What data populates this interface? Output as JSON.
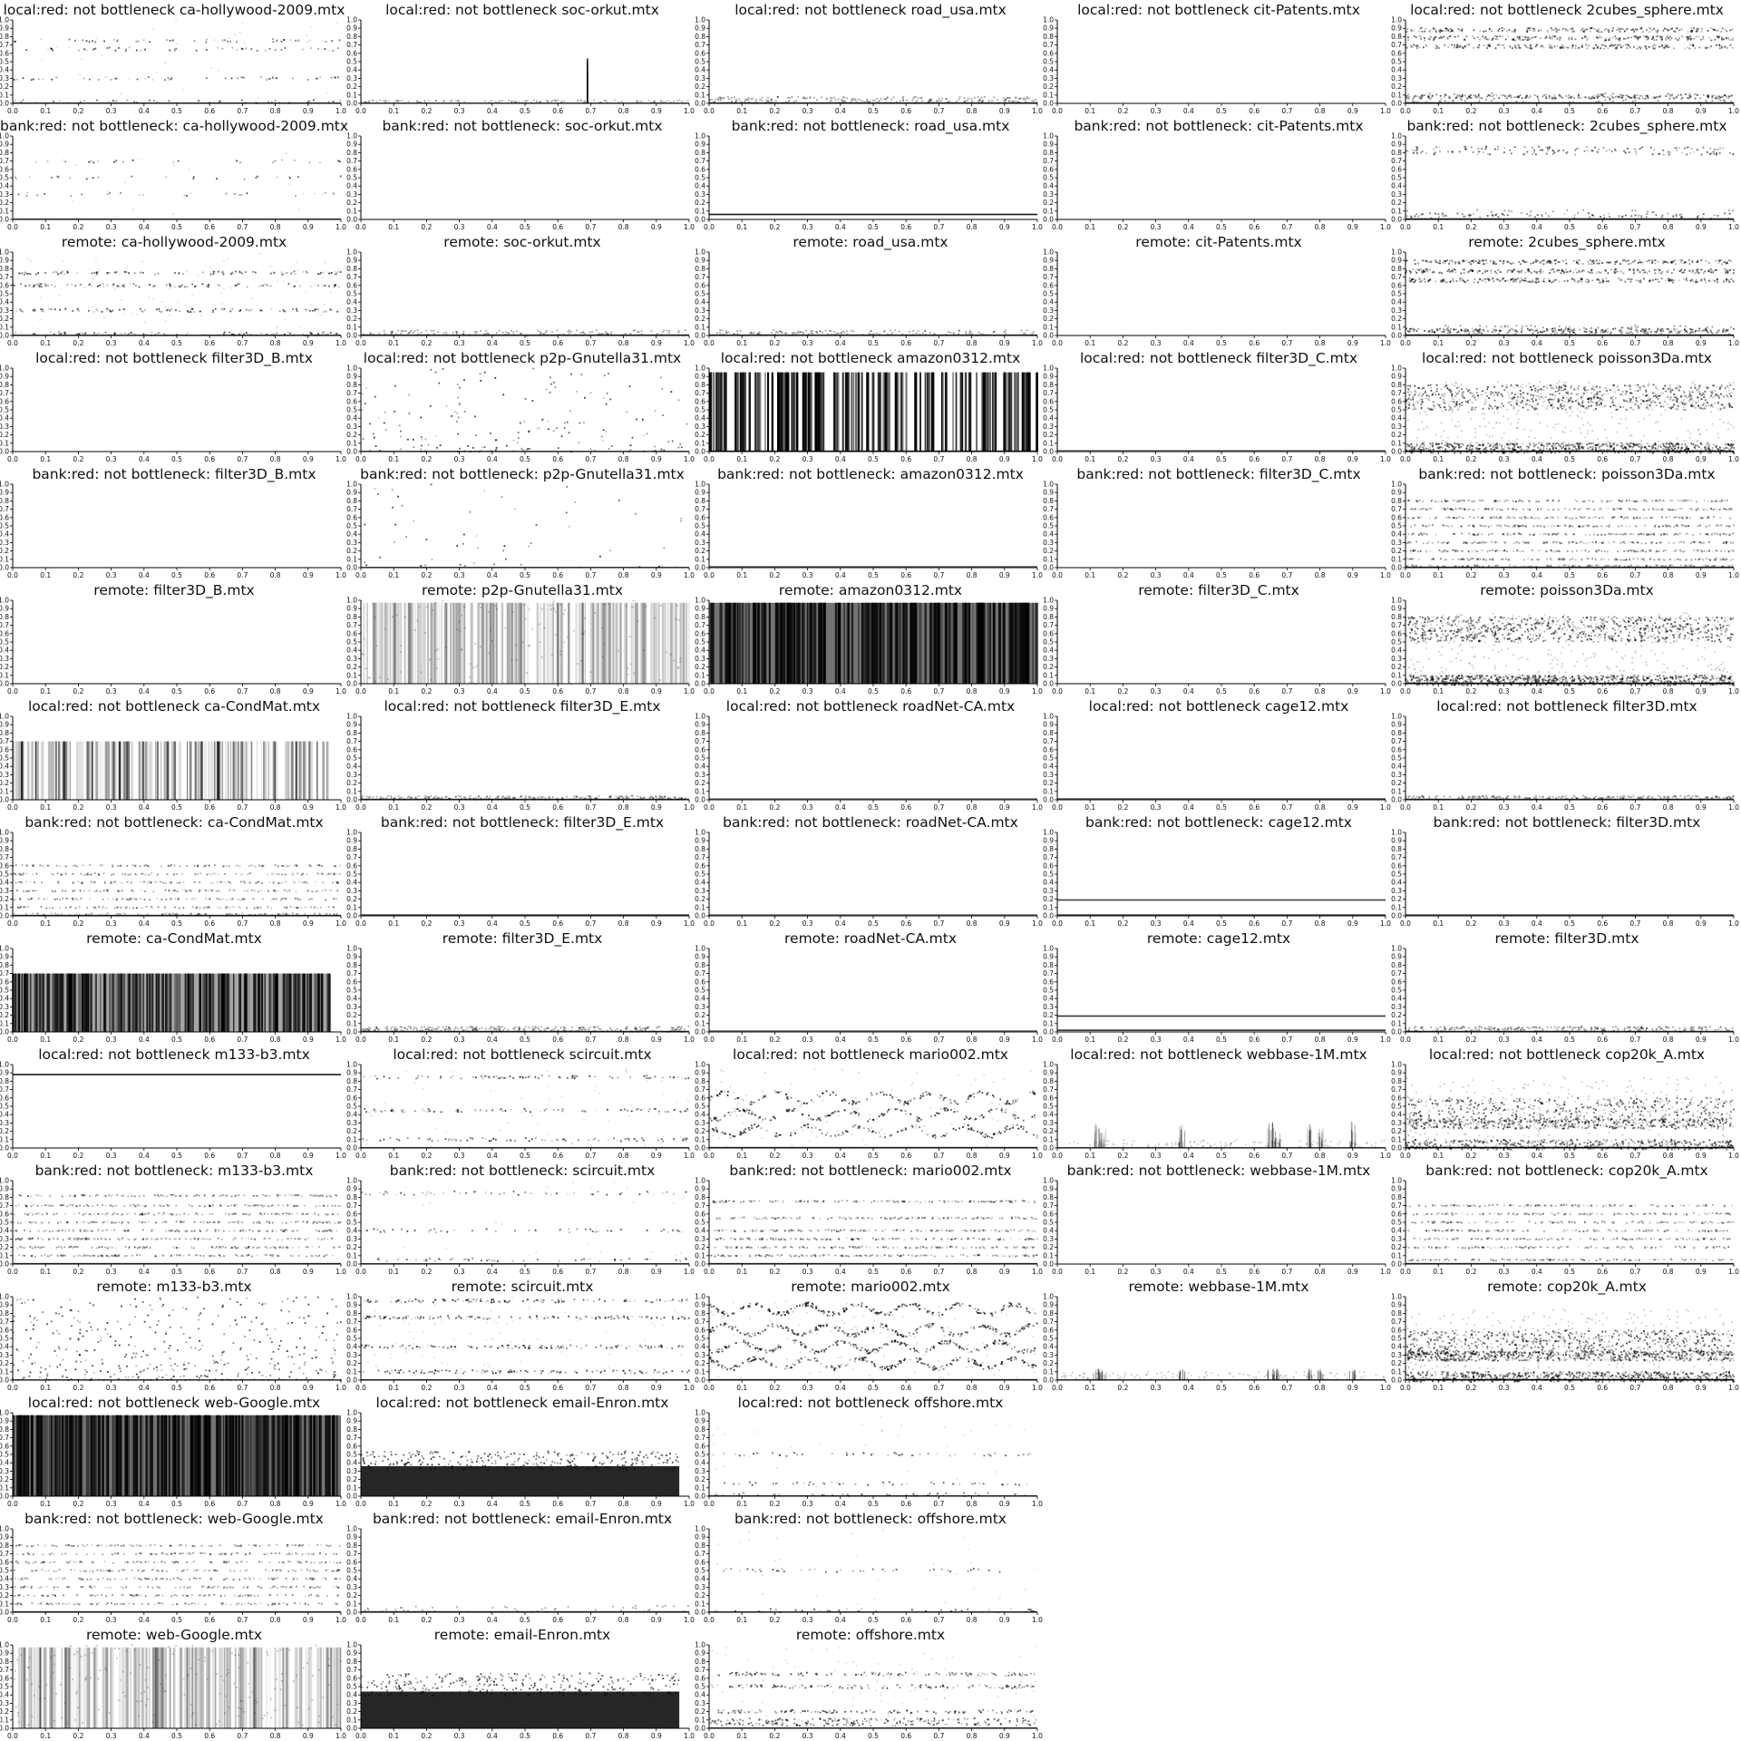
{
  "layout": {
    "columns": 5
  },
  "chart_data": {
    "type": "scatter",
    "xlim": [
      0,
      1
    ],
    "ylim": [
      0,
      1
    ],
    "x_ticks": [
      "0.0",
      "0.1",
      "0.2",
      "0.3",
      "0.4",
      "0.5",
      "0.6",
      "0.7",
      "0.8",
      "0.9",
      "1.0"
    ],
    "y_ticks": [
      "0.0",
      "0.1",
      "0.2",
      "0.3",
      "0.4",
      "0.5",
      "0.6",
      "0.7",
      "0.8",
      "0.9",
      "1.0"
    ],
    "marker_color": "#000000",
    "panels": [
      {
        "title": "local:red: not bottleneck ca-hollywood-2009.mtx",
        "pattern": "sparse-bands",
        "bands": [
          0.75,
          0.65,
          0.3,
          0.02
        ],
        "density": 0.12
      },
      {
        "title": "local:red: not bottleneck soc-orkut.mtx",
        "pattern": "spike",
        "bands": [
          0.02
        ],
        "spike_x": 0.69,
        "density": 0.05
      },
      {
        "title": "local:red: not bottleneck road_usa.mtx",
        "pattern": "bottom-band",
        "bands": [
          0.05
        ],
        "density": 0.5
      },
      {
        "title": "local:red: not bottleneck cit-Patents.mtx",
        "pattern": "empty",
        "bands": [],
        "density": 0
      },
      {
        "title": "local:red: not bottleneck 2cubes_sphere.mtx",
        "pattern": "top-bottom",
        "bands": [
          0.88,
          0.78,
          0.68,
          0.08
        ],
        "density": 0.4
      },
      {
        "title": "bank:red: not bottleneck: ca-hollywood-2009.mtx",
        "pattern": "sparse-bands",
        "bands": [
          0.7,
          0.5,
          0.3
        ],
        "density": 0.06
      },
      {
        "title": "bank:red: not bottleneck: soc-orkut.mtx",
        "pattern": "empty",
        "bands": [],
        "density": 0
      },
      {
        "title": "bank:red: not bottleneck: road_usa.mtx",
        "pattern": "line",
        "bands": [
          0.06
        ],
        "density": 1
      },
      {
        "title": "bank:red: not bottleneck: cit-Patents.mtx",
        "pattern": "empty",
        "bands": [],
        "density": 0
      },
      {
        "title": "bank:red: not bottleneck: 2cubes_sphere.mtx",
        "pattern": "top-bottom",
        "bands": [
          0.85,
          0.8,
          0.05
        ],
        "density": 0.15
      },
      {
        "title": "remote: ca-hollywood-2009.mtx",
        "pattern": "sparse-bands",
        "bands": [
          0.75,
          0.6,
          0.3,
          0.02
        ],
        "density": 0.25
      },
      {
        "title": "remote: soc-orkut.mtx",
        "pattern": "bottom-band",
        "bands": [
          0.04
        ],
        "density": 0.3
      },
      {
        "title": "remote: road_usa.mtx",
        "pattern": "bottom-band",
        "bands": [
          0.04
        ],
        "density": 0.3
      },
      {
        "title": "remote: cit-Patents.mtx",
        "pattern": "empty",
        "bands": [],
        "density": 0
      },
      {
        "title": "remote: 2cubes_sphere.mtx",
        "pattern": "top-bottom",
        "bands": [
          0.88,
          0.77,
          0.66,
          0.06
        ],
        "density": 0.45
      },
      {
        "title": "local:red: not bottleneck filter3D_B.mtx",
        "pattern": "empty",
        "bands": [],
        "density": 0
      },
      {
        "title": "local:red: not bottleneck p2p-Gnutella31.mtx",
        "pattern": "scatter",
        "bands": [],
        "density": 0.25
      },
      {
        "title": "local:red: not bottleneck amazon0312.mtx",
        "pattern": "columns",
        "bands": [],
        "density": 0.9
      },
      {
        "title": "local:red: not bottleneck filter3D_C.mtx",
        "pattern": "line",
        "bands": [
          0.01
        ],
        "density": 0.3
      },
      {
        "title": "local:red: not bottleneck poisson3Da.mtx",
        "pattern": "dense",
        "bands": [
          0.8,
          0.1
        ],
        "density": 0.8
      },
      {
        "title": "bank:red: not bottleneck: filter3D_B.mtx",
        "pattern": "empty",
        "bands": [],
        "density": 0
      },
      {
        "title": "bank:red: not bottleneck: p2p-Gnutella31.mtx",
        "pattern": "scatter",
        "bands": [],
        "density": 0.08
      },
      {
        "title": "bank:red: not bottleneck: amazon0312.mtx",
        "pattern": "line",
        "bands": [
          0.01
        ],
        "density": 0.5
      },
      {
        "title": "bank:red: not bottleneck: filter3D_C.mtx",
        "pattern": "empty",
        "bands": [],
        "density": 0
      },
      {
        "title": "bank:red: not bottleneck: poisson3Da.mtx",
        "pattern": "stripes",
        "bands": [
          0.8,
          0.7,
          0.6,
          0.5,
          0.4,
          0.3,
          0.2,
          0.1,
          0.02
        ],
        "density": 0.35
      },
      {
        "title": "remote: filter3D_B.mtx",
        "pattern": "empty",
        "bands": [],
        "density": 0
      },
      {
        "title": "remote: p2p-Gnutella31.mtx",
        "pattern": "columns-light",
        "bands": [],
        "density": 0.45
      },
      {
        "title": "remote: amazon0312.mtx",
        "pattern": "dense-columns",
        "bands": [],
        "density": 1
      },
      {
        "title": "remote: filter3D_C.mtx",
        "pattern": "empty",
        "bands": [],
        "density": 0
      },
      {
        "title": "remote: poisson3Da.mtx",
        "pattern": "dense",
        "bands": [
          0.8,
          0.1
        ],
        "density": 0.9
      },
      {
        "title": "local:red: not bottleneck ca-CondMat.mtx",
        "pattern": "columns-short",
        "bands": [],
        "density": 0.5
      },
      {
        "title": "local:red: not bottleneck filter3D_E.mtx",
        "pattern": "bottom-band",
        "bands": [
          0.03
        ],
        "density": 0.5
      },
      {
        "title": "local:red: not bottleneck roadNet-CA.mtx",
        "pattern": "line",
        "bands": [
          0.01
        ],
        "density": 0.3
      },
      {
        "title": "local:red: not bottleneck cage12.mtx",
        "pattern": "line",
        "bands": [
          0.01
        ],
        "density": 0.6
      },
      {
        "title": "local:red: not bottleneck filter3D.mtx",
        "pattern": "bottom-band",
        "bands": [
          0.03
        ],
        "density": 0.5
      },
      {
        "title": "bank:red: not bottleneck: ca-CondMat.mtx",
        "pattern": "stripes",
        "bands": [
          0.6,
          0.5,
          0.4,
          0.3,
          0.2,
          0.1,
          0.02
        ],
        "density": 0.25
      },
      {
        "title": "bank:red: not bottleneck: filter3D_E.mtx",
        "pattern": "line",
        "bands": [
          0.01
        ],
        "density": 0.7
      },
      {
        "title": "bank:red: not bottleneck: roadNet-CA.mtx",
        "pattern": "line",
        "bands": [
          0.01
        ],
        "density": 0.4
      },
      {
        "title": "bank:red: not bottleneck: cage12.mtx",
        "pattern": "line",
        "bands": [
          0.19,
          0.01
        ],
        "density": 0.7
      },
      {
        "title": "bank:red: not bottleneck: filter3D.mtx",
        "pattern": "line",
        "bands": [
          0.01
        ],
        "density": 0.6
      },
      {
        "title": "remote: ca-CondMat.mtx",
        "pattern": "columns-short-dense",
        "bands": [],
        "density": 0.8
      },
      {
        "title": "remote: filter3D_E.mtx",
        "pattern": "bottom-band",
        "bands": [
          0.04
        ],
        "density": 0.6
      },
      {
        "title": "remote: roadNet-CA.mtx",
        "pattern": "line",
        "bands": [
          0.01
        ],
        "density": 0.4
      },
      {
        "title": "remote: cage12.mtx",
        "pattern": "line",
        "bands": [
          0.19,
          0.02
        ],
        "density": 0.8
      },
      {
        "title": "remote: filter3D.mtx",
        "pattern": "bottom-band",
        "bands": [
          0.04
        ],
        "density": 0.6
      },
      {
        "title": "local:red: not bottleneck m133-b3.mtx",
        "pattern": "line",
        "bands": [
          0.88
        ],
        "density": 1
      },
      {
        "title": "local:red: not bottleneck scircuit.mtx",
        "pattern": "sparse-bands",
        "bands": [
          0.85,
          0.45,
          0.1
        ],
        "density": 0.2
      },
      {
        "title": "local:red: not bottleneck mario002.mtx",
        "pattern": "wavy",
        "bands": [
          0.6,
          0.4,
          0.2
        ],
        "density": 0.35
      },
      {
        "title": "local:red: not bottleneck webbase-1M.mtx",
        "pattern": "spikes",
        "bands": [
          0.01
        ],
        "density": 0.15
      },
      {
        "title": "local:red: not bottleneck cop20k_A.mtx",
        "pattern": "dense",
        "bands": [
          0.6,
          0.35,
          0.1
        ],
        "density": 0.55
      },
      {
        "title": "bank:red: not bottleneck: m133-b3.mtx",
        "pattern": "stripes",
        "bands": [
          0.82,
          0.7,
          0.6,
          0.5,
          0.4,
          0.3,
          0.2,
          0.1
        ],
        "density": 0.3
      },
      {
        "title": "bank:red: not bottleneck: scircuit.mtx",
        "pattern": "sparse-bands",
        "bands": [
          0.85,
          0.4,
          0.05
        ],
        "density": 0.12
      },
      {
        "title": "bank:red: not bottleneck: mario002.mtx",
        "pattern": "stripes",
        "bands": [
          0.75,
          0.55,
          0.4,
          0.3,
          0.2,
          0.1
        ],
        "density": 0.35
      },
      {
        "title": "bank:red: not bottleneck: webbase-1M.mtx",
        "pattern": "empty",
        "bands": [],
        "density": 0
      },
      {
        "title": "bank:red: not bottleneck: cop20k_A.mtx",
        "pattern": "stripes",
        "bands": [
          0.7,
          0.6,
          0.5,
          0.4,
          0.3,
          0.2,
          0.05
        ],
        "density": 0.3
      },
      {
        "title": "remote: m133-b3.mtx",
        "pattern": "scatter",
        "bands": [],
        "density": 0.6
      },
      {
        "title": "remote: scircuit.mtx",
        "pattern": "sparse-bands",
        "bands": [
          0.95,
          0.75,
          0.4,
          0.1
        ],
        "density": 0.3
      },
      {
        "title": "remote: mario002.mtx",
        "pattern": "wavy",
        "bands": [
          0.85,
          0.6,
          0.4,
          0.2
        ],
        "density": 0.5
      },
      {
        "title": "remote: webbase-1M.mtx",
        "pattern": "spikes",
        "bands": [
          0.01
        ],
        "density": 0.05
      },
      {
        "title": "remote: cop20k_A.mtx",
        "pattern": "dense",
        "bands": [
          0.6,
          0.35,
          0.1
        ],
        "density": 0.7
      },
      {
        "title": "local:red: not bottleneck web-Google.mtx",
        "pattern": "dense-columns",
        "bands": [],
        "density": 1
      },
      {
        "title": "local:red: not bottleneck email-Enron.mtx",
        "pattern": "dense-low",
        "bands": [
          0.45
        ],
        "density": 1
      },
      {
        "title": "local:red: not bottleneck offshore.mtx",
        "pattern": "sparse-bands",
        "bands": [
          0.5,
          0.15,
          0.02
        ],
        "density": 0.12
      },
      {
        "title": "",
        "pattern": "none",
        "bands": [],
        "density": 0
      },
      {
        "title": "",
        "pattern": "none",
        "bands": [],
        "density": 0
      },
      {
        "title": "bank:red: not bottleneck: web-Google.mtx",
        "pattern": "stripes",
        "bands": [
          0.8,
          0.7,
          0.6,
          0.5,
          0.4,
          0.3,
          0.2,
          0.1
        ],
        "density": 0.25
      },
      {
        "title": "bank:red: not bottleneck: email-Enron.mtx",
        "pattern": "bottom-band",
        "bands": [
          0.05
        ],
        "density": 0.1
      },
      {
        "title": "bank:red: not bottleneck: offshore.mtx",
        "pattern": "sparse-bands",
        "bands": [
          0.5,
          0.02
        ],
        "density": 0.1
      },
      {
        "title": "",
        "pattern": "none",
        "bands": [],
        "density": 0
      },
      {
        "title": "",
        "pattern": "none",
        "bands": [],
        "density": 0
      },
      {
        "title": "remote: web-Google.mtx",
        "pattern": "columns-light",
        "bands": [],
        "density": 0.6
      },
      {
        "title": "remote: email-Enron.mtx",
        "pattern": "dense-low",
        "bands": [
          0.55
        ],
        "density": 1
      },
      {
        "title": "remote: offshore.mtx",
        "pattern": "sparse-bands",
        "bands": [
          0.65,
          0.5,
          0.2,
          0.1,
          0.05
        ],
        "density": 0.3
      },
      {
        "title": "",
        "pattern": "none",
        "bands": [],
        "density": 0
      },
      {
        "title": "",
        "pattern": "none",
        "bands": [],
        "density": 0
      }
    ]
  }
}
